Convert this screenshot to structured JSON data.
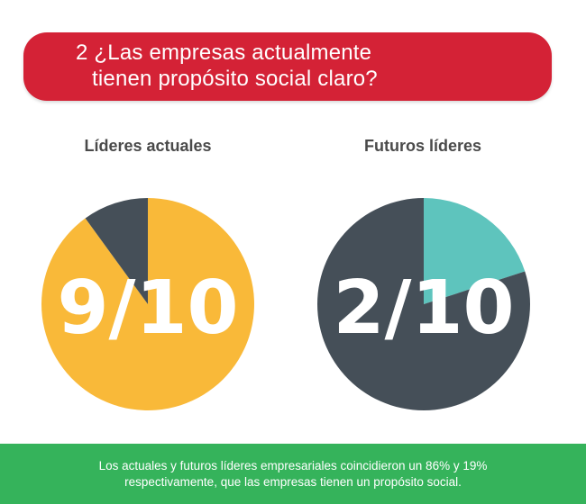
{
  "banner": {
    "line1": "2 ¿Las empresas actualmente",
    "line2": "tienen propósito social claro?"
  },
  "chart_data": [
    {
      "type": "pie",
      "title": "Líderes actuales",
      "label": "9/10",
      "slices": [
        {
          "value": 9,
          "color": "#f9b939"
        },
        {
          "value": 1,
          "color": "#454f58"
        }
      ]
    },
    {
      "type": "pie",
      "title": "Futuros líderes",
      "label": "2/10",
      "slices": [
        {
          "value": 2,
          "color": "#5ec4bd"
        },
        {
          "value": 8,
          "color": "#454f58"
        }
      ]
    }
  ],
  "footer": {
    "line1": "Los actuales y futuros líderes empresariales coincidieron un 86% y 19%",
    "line2": "respectivamente, que las empresas tienen un propósito social."
  }
}
